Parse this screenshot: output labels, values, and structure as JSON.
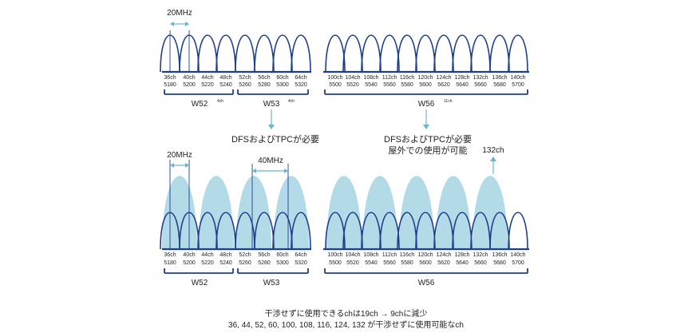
{
  "colors": {
    "line": "#1e3f8c",
    "fill": "#b3dbe7",
    "accent": "#6ab4d0",
    "text": "#222222"
  },
  "top_panel": {
    "width_label": "20MHz",
    "bands": [
      {
        "name": "W52",
        "superscript": "4ch"
      },
      {
        "name": "W53",
        "superscript": "4ch"
      },
      {
        "name": "W56",
        "superscript": "11ch"
      }
    ],
    "note_left": "DFSおよびTPCが必要",
    "note_right_lines": [
      "DFSおよびTPCが必要",
      "屋外での使用が可能"
    ]
  },
  "bottom_panel": {
    "width_label_20": "20MHz",
    "width_label_40": "40MHz",
    "arrow_label": "132ch",
    "bands": [
      {
        "name": "W52"
      },
      {
        "name": "W53"
      },
      {
        "name": "W56"
      }
    ]
  },
  "channels_left": [
    {
      "ch": "36ch",
      "freq": "5180"
    },
    {
      "ch": "40ch",
      "freq": "5200"
    },
    {
      "ch": "44ch",
      "freq": "5220"
    },
    {
      "ch": "48ch",
      "freq": "5240"
    },
    {
      "ch": "52ch",
      "freq": "5260"
    },
    {
      "ch": "56ch",
      "freq": "5280"
    },
    {
      "ch": "60ch",
      "freq": "5300"
    },
    {
      "ch": "64ch",
      "freq": "5320"
    }
  ],
  "channels_right": [
    {
      "ch": "100ch",
      "freq": "5500"
    },
    {
      "ch": "104ch",
      "freq": "5520"
    },
    {
      "ch": "108ch",
      "freq": "5540"
    },
    {
      "ch": "112ch",
      "freq": "5560"
    },
    {
      "ch": "116ch",
      "freq": "5580"
    },
    {
      "ch": "120ch",
      "freq": "5600"
    },
    {
      "ch": "124ch",
      "freq": "5620"
    },
    {
      "ch": "128ch",
      "freq": "5640"
    },
    {
      "ch": "132ch",
      "freq": "5660"
    },
    {
      "ch": "136ch",
      "freq": "5680"
    },
    {
      "ch": "140ch",
      "freq": "5700"
    }
  ],
  "footer": {
    "line1": "干渉せずに使用できるchは19ch → 9chに減少",
    "line2": "36, 44, 52, 60, 100, 108, 116, 124, 132 が干渉せずに使用可能なch"
  }
}
